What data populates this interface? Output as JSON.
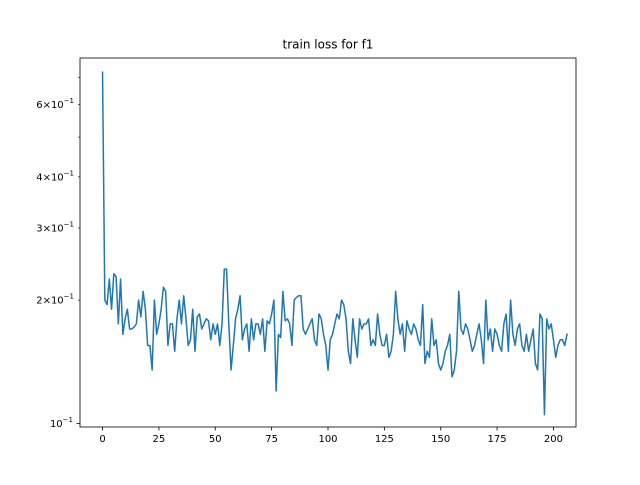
{
  "chart_data": {
    "type": "line",
    "title": "train loss for f1",
    "xlabel": "",
    "ylabel": "",
    "y_scale": "log",
    "xlim": [
      -10,
      210
    ],
    "ylim": [
      0.098,
      0.78
    ],
    "grid": false,
    "legend": false,
    "x_ticks": [
      0,
      25,
      50,
      75,
      100,
      125,
      150,
      175,
      200
    ],
    "x_tick_labels": [
      "0",
      "25",
      "50",
      "75",
      "100",
      "125",
      "150",
      "175",
      "200"
    ],
    "y_major_ticks": [
      0.1
    ],
    "y_major_labels": [
      "10−1"
    ],
    "y_minor_ticks": [
      0.2,
      0.3,
      0.4,
      0.5,
      0.6,
      0.7
    ],
    "y_minor_labels": {
      "0.2": "2×10−1",
      "0.3": "3×10−1",
      "0.4": "4×10−1",
      "0.6": "6×10−1"
    },
    "series": [
      {
        "color": "#1f77b4",
        "values": [
          0.72,
          0.2,
          0.195,
          0.225,
          0.19,
          0.232,
          0.228,
          0.175,
          0.225,
          0.165,
          0.18,
          0.19,
          0.17,
          0.17,
          0.172,
          0.175,
          0.2,
          0.182,
          0.21,
          0.19,
          0.155,
          0.155,
          0.135,
          0.2,
          0.165,
          0.175,
          0.19,
          0.215,
          0.21,
          0.155,
          0.175,
          0.175,
          0.15,
          0.18,
          0.2,
          0.175,
          0.205,
          0.18,
          0.155,
          0.16,
          0.19,
          0.15,
          0.182,
          0.185,
          0.17,
          0.175,
          0.18,
          0.178,
          0.16,
          0.175,
          0.165,
          0.175,
          0.155,
          0.175,
          0.238,
          0.238,
          0.175,
          0.135,
          0.155,
          0.18,
          0.19,
          0.205,
          0.16,
          0.17,
          0.175,
          0.15,
          0.18,
          0.16,
          0.175,
          0.175,
          0.165,
          0.18,
          0.15,
          0.178,
          0.175,
          0.185,
          0.2,
          0.12,
          0.165,
          0.162,
          0.21,
          0.178,
          0.18,
          0.175,
          0.155,
          0.2,
          0.203,
          0.205,
          0.205,
          0.17,
          0.165,
          0.17,
          0.175,
          0.18,
          0.16,
          0.155,
          0.185,
          0.18,
          0.165,
          0.155,
          0.135,
          0.16,
          0.165,
          0.175,
          0.185,
          0.18,
          0.2,
          0.195,
          0.18,
          0.15,
          0.14,
          0.18,
          0.16,
          0.145,
          0.18,
          0.17,
          0.175,
          0.175,
          0.18,
          0.155,
          0.16,
          0.155,
          0.185,
          0.165,
          0.155,
          0.155,
          0.165,
          0.145,
          0.15,
          0.165,
          0.21,
          0.18,
          0.165,
          0.175,
          0.15,
          0.178,
          0.17,
          0.165,
          0.175,
          0.17,
          0.16,
          0.155,
          0.195,
          0.14,
          0.15,
          0.145,
          0.18,
          0.155,
          0.16,
          0.14,
          0.135,
          0.14,
          0.15,
          0.155,
          0.165,
          0.13,
          0.135,
          0.15,
          0.21,
          0.17,
          0.165,
          0.175,
          0.17,
          0.16,
          0.15,
          0.155,
          0.165,
          0.175,
          0.16,
          0.14,
          0.2,
          0.16,
          0.17,
          0.15,
          0.17,
          0.165,
          0.155,
          0.15,
          0.175,
          0.185,
          0.15,
          0.2,
          0.165,
          0.155,
          0.17,
          0.175,
          0.155,
          0.15,
          0.165,
          0.15,
          0.16,
          0.17,
          0.14,
          0.135,
          0.185,
          0.18,
          0.105,
          0.18,
          0.17,
          0.175,
          0.16,
          0.145,
          0.155,
          0.16,
          0.16,
          0.155,
          0.165
        ]
      }
    ]
  }
}
